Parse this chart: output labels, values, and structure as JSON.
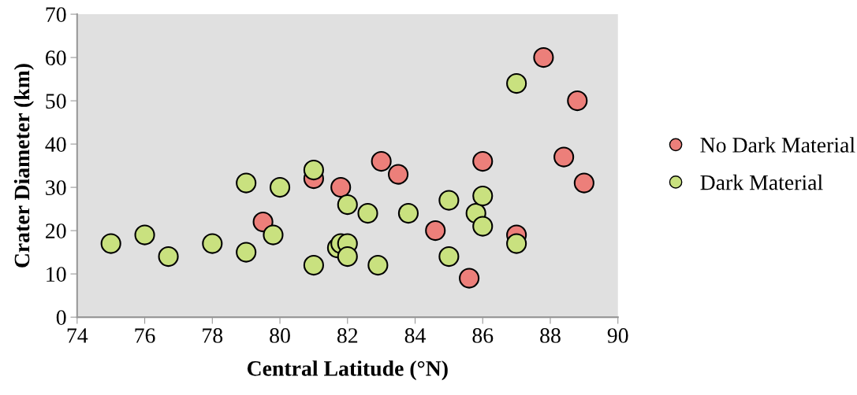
{
  "chart_data": {
    "type": "scatter",
    "xlabel": "Central Latitude (°N)",
    "ylabel": "Crater Diameter (km)",
    "xlim": [
      74,
      90
    ],
    "xticks": [
      74,
      76,
      78,
      80,
      82,
      84,
      86,
      88,
      90
    ],
    "ylim": [
      0,
      70
    ],
    "yticks": [
      0,
      10,
      20,
      30,
      40,
      50,
      60,
      70
    ],
    "grid": false,
    "legend": "right",
    "marker": "circle",
    "series": [
      {
        "name": "No Dark Material",
        "color": "#ec7f7a",
        "x": [
          87.8,
          88.8,
          88.4,
          89.0,
          86.0,
          83.0,
          83.5,
          81.8,
          84.6,
          85.6,
          87.0,
          79.5,
          81.0
        ],
        "values": [
          60,
          50,
          37,
          31,
          36,
          36,
          33,
          30,
          20,
          9,
          19,
          22,
          32
        ]
      },
      {
        "name": "Dark Material",
        "color": "#c9e17f",
        "x": [
          75.0,
          76.0,
          76.7,
          78.0,
          79.0,
          79.0,
          80.0,
          79.8,
          81.0,
          81.0,
          82.0,
          81.7,
          81.8,
          82.0,
          82.0,
          82.6,
          82.9,
          83.8,
          85.0,
          85.0,
          85.8,
          86.0,
          86.0,
          87.0,
          87.0
        ],
        "values": [
          17,
          19,
          14,
          17,
          31,
          15,
          30,
          19,
          34,
          12,
          26,
          16,
          17,
          17,
          14,
          24,
          12,
          24,
          27,
          14,
          24,
          28,
          21,
          54,
          17
        ]
      }
    ]
  }
}
